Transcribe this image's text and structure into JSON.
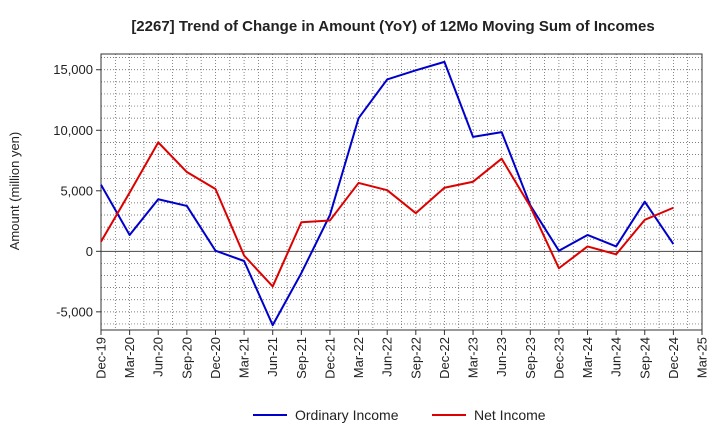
{
  "chart_data": {
    "type": "line",
    "title": "[2267]  Trend of Change in Amount (YoY) of 12Mo Moving Sum of Incomes",
    "ylabel": "Amount (million yen)",
    "xlabel": "",
    "ylim": [
      -6500,
      16300
    ],
    "yticks": [
      -5000,
      0,
      5000,
      10000,
      15000
    ],
    "ytick_labels": [
      "-5,000",
      "0",
      "5,000",
      "10,000",
      "15,000"
    ],
    "grid": true,
    "legend_position": "bottom-center",
    "categories": [
      "Dec-19",
      "Mar-20",
      "Jun-20",
      "Sep-20",
      "Dec-20",
      "Mar-21",
      "Jun-21",
      "Sep-21",
      "Dec-21",
      "Mar-22",
      "Jun-22",
      "Sep-22",
      "Dec-22",
      "Mar-23",
      "Jun-23",
      "Sep-23",
      "Dec-23",
      "Mar-24",
      "Jun-24",
      "Sep-24",
      "Dec-24",
      "Mar-25"
    ],
    "series": [
      {
        "name": "Ordinary Income",
        "color": "#0000cc",
        "values": [
          5500,
          1350,
          4300,
          3750,
          50,
          -800,
          -6100,
          -1800,
          3000,
          11000,
          14200,
          14950,
          15650,
          9450,
          9850,
          3800,
          50,
          1350,
          400,
          4100,
          600,
          null
        ]
      },
      {
        "name": "Net Income",
        "color": "#dd0000",
        "values": [
          800,
          4850,
          9000,
          6550,
          5150,
          -350,
          -2900,
          2400,
          2550,
          5650,
          5050,
          3150,
          5250,
          5750,
          7650,
          3700,
          -1400,
          400,
          -250,
          2600,
          3600,
          null
        ]
      }
    ]
  }
}
